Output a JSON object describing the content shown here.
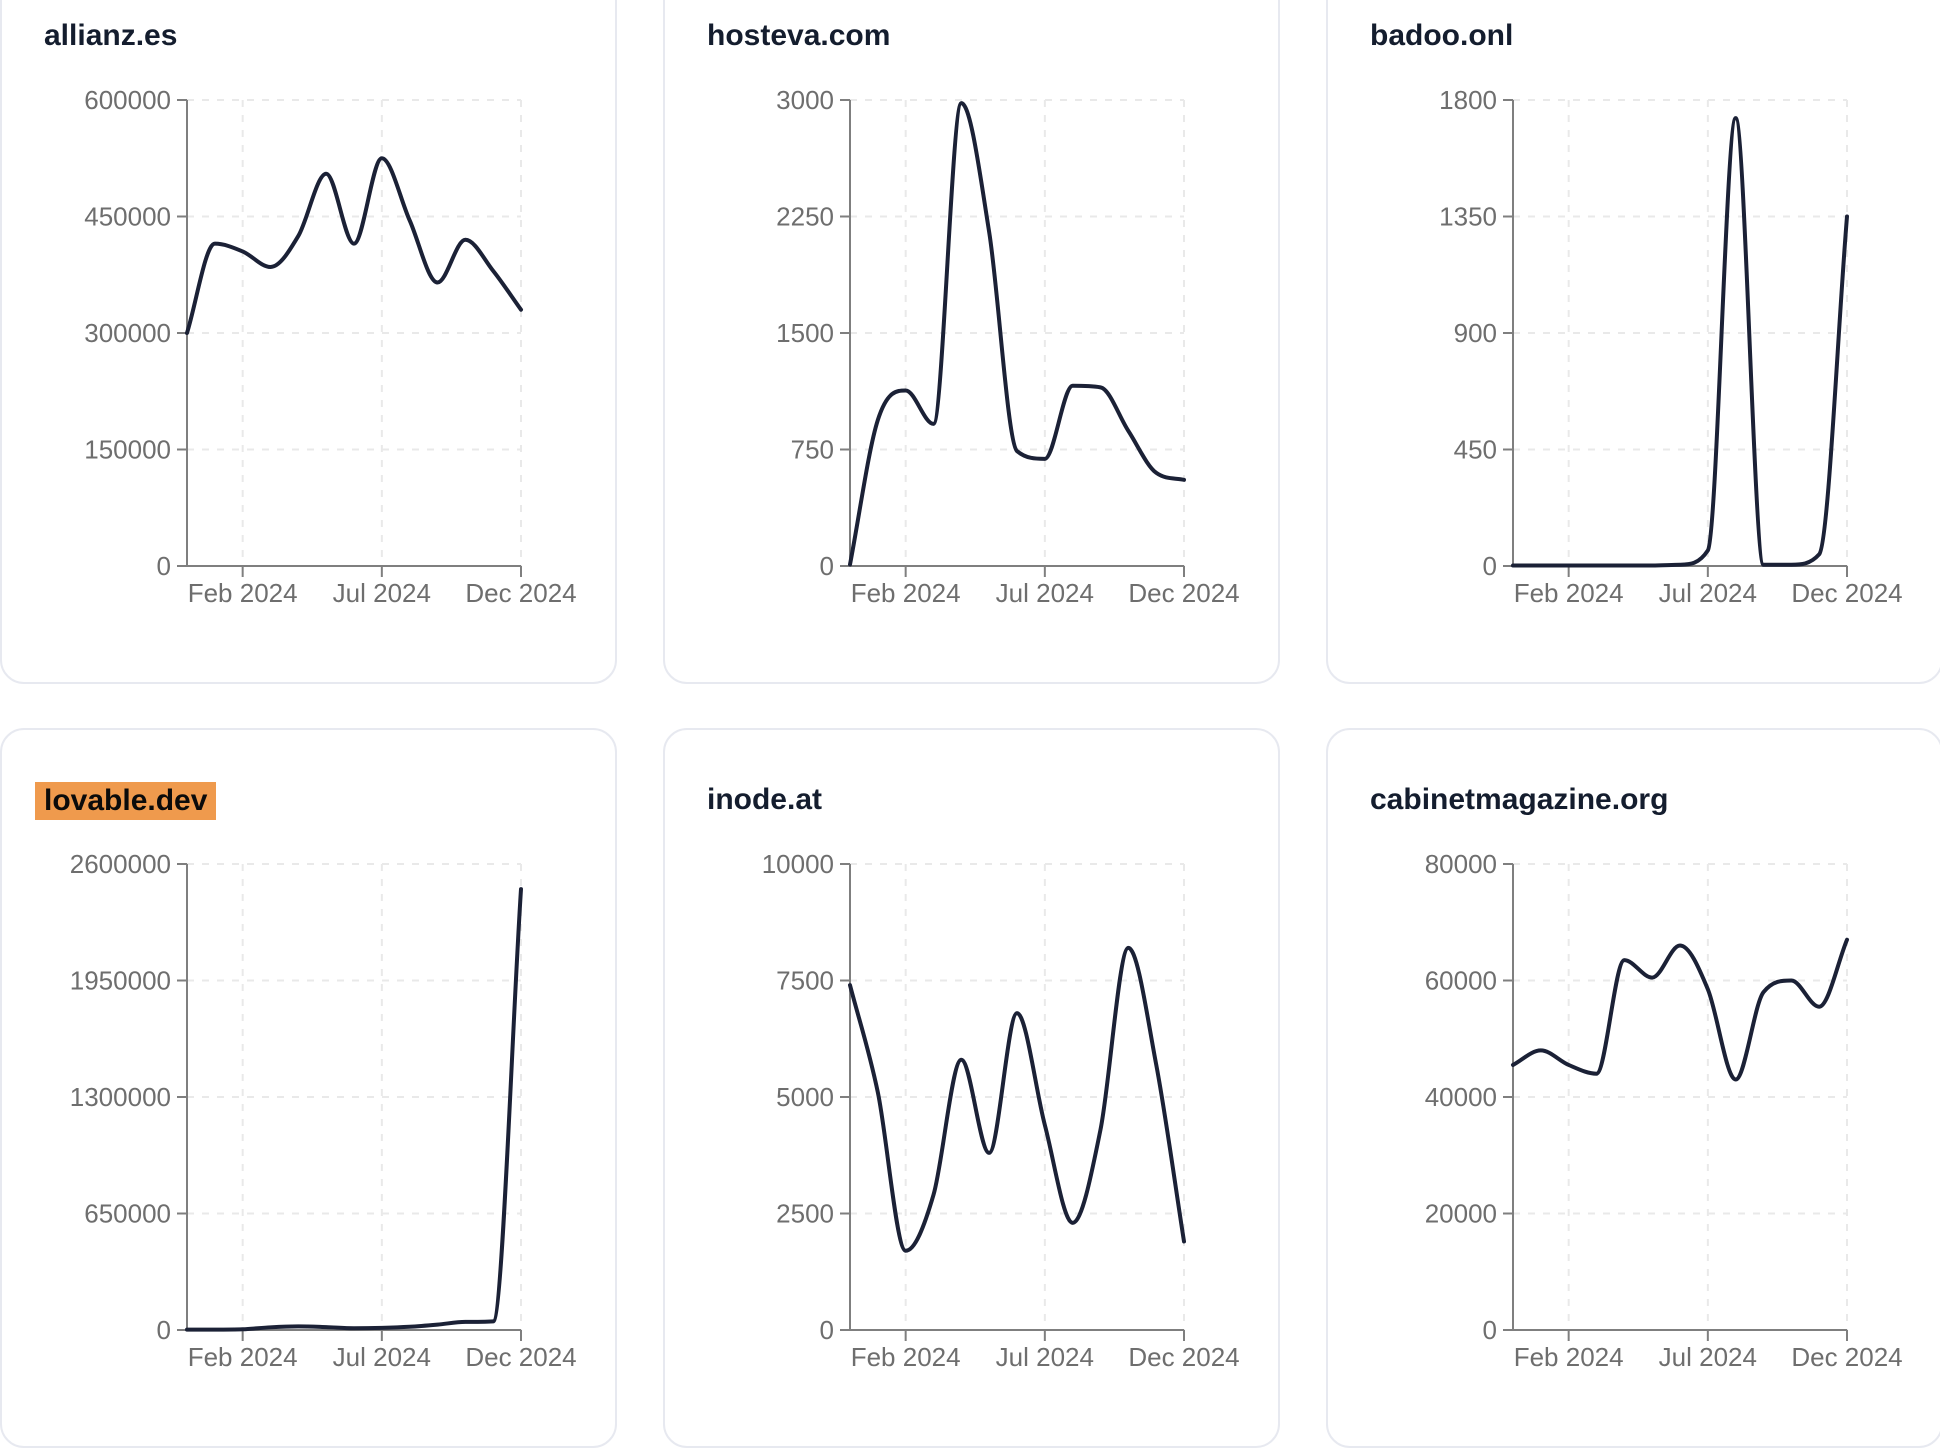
{
  "page": {
    "background": "#ffffff"
  },
  "card": {
    "background": "#ffffff",
    "border_color": "#e7e9f0"
  },
  "style": {
    "line_color": "#1b2136",
    "grid_color": "#e9e9e9",
    "axis_color": "#7f7f7f",
    "tick_label_color": "#6e6e6e",
    "title_color": "#141d2e",
    "highlight_bg": "#ef9a4d",
    "highlight_text": "#0b0b0b"
  },
  "x_months": [
    "2023-12",
    "2024-01",
    "2024-02",
    "2024-03",
    "2024-04",
    "2024-05",
    "2024-06",
    "2024-07",
    "2024-08",
    "2024-09",
    "2024-10",
    "2024-11",
    "2024-12"
  ],
  "chart_data": [
    {
      "type": "line",
      "title": "allianz.es",
      "highlighted": false,
      "x_tick_labels": [
        "Feb 2024",
        "Jul 2024",
        "Dec 2024"
      ],
      "x_tick_indices": [
        2,
        7,
        12
      ],
      "y_tick_labels": [
        "600000",
        "450000",
        "300000",
        "150000",
        "0"
      ],
      "y_max": 600000,
      "values": [
        300000,
        415000,
        405000,
        385000,
        425000,
        505000,
        415000,
        525000,
        445000,
        365000,
        420000,
        380000,
        330000
      ]
    },
    {
      "type": "line",
      "title": "hosteva.com",
      "highlighted": false,
      "x_tick_labels": [
        "Feb 2024",
        "Jul 2024",
        "Dec 2024"
      ],
      "x_tick_indices": [
        2,
        7,
        12
      ],
      "y_tick_labels": [
        "3000",
        "2250",
        "1500",
        "750",
        "0"
      ],
      "y_max": 3000,
      "values": [
        10,
        940,
        1130,
        915,
        2980,
        2150,
        740,
        690,
        1160,
        1150,
        870,
        600,
        555
      ]
    },
    {
      "type": "line",
      "title": "badoo.onl",
      "highlighted": false,
      "x_tick_labels": [
        "Feb 2024",
        "Jul 2024",
        "Dec 2024"
      ],
      "x_tick_indices": [
        2,
        7,
        12
      ],
      "y_tick_labels": [
        "1800",
        "1350",
        "900",
        "450",
        "0"
      ],
      "y_max": 1800,
      "values": [
        2,
        2,
        2,
        2,
        2,
        2,
        5,
        60,
        1730,
        5,
        5,
        45,
        1350
      ]
    },
    {
      "type": "line",
      "title": "lovable.dev",
      "highlighted": true,
      "x_tick_labels": [
        "Feb 2024",
        "Jul 2024",
        "Dec 2024"
      ],
      "x_tick_indices": [
        2,
        7,
        12
      ],
      "y_tick_labels": [
        "2600000",
        "1950000",
        "1300000",
        "650000",
        "0"
      ],
      "y_max": 2600000,
      "values": [
        2000,
        2000,
        4000,
        15000,
        20000,
        16000,
        10000,
        12000,
        18000,
        30000,
        45000,
        48000,
        2460000
      ]
    },
    {
      "type": "line",
      "title": "inode.at",
      "highlighted": false,
      "x_tick_labels": [
        "Feb 2024",
        "Jul 2024",
        "Dec 2024"
      ],
      "x_tick_indices": [
        2,
        7,
        12
      ],
      "y_tick_labels": [
        "10000",
        "7500",
        "5000",
        "2500",
        "0"
      ],
      "y_max": 10000,
      "values": [
        7400,
        5100,
        1700,
        2900,
        5800,
        3800,
        6800,
        4400,
        2300,
        4300,
        8200,
        5700,
        1900
      ]
    },
    {
      "type": "line",
      "title": "cabinetmagazine.org",
      "highlighted": false,
      "x_tick_labels": [
        "Feb 2024",
        "Jul 2024",
        "Dec 2024"
      ],
      "x_tick_indices": [
        2,
        7,
        12
      ],
      "y_tick_labels": [
        "80000",
        "60000",
        "40000",
        "20000",
        "0"
      ],
      "y_max": 80000,
      "values": [
        45500,
        48000,
        45500,
        44000,
        63500,
        60500,
        66000,
        58500,
        43000,
        58000,
        60000,
        55500,
        67000
      ]
    }
  ]
}
